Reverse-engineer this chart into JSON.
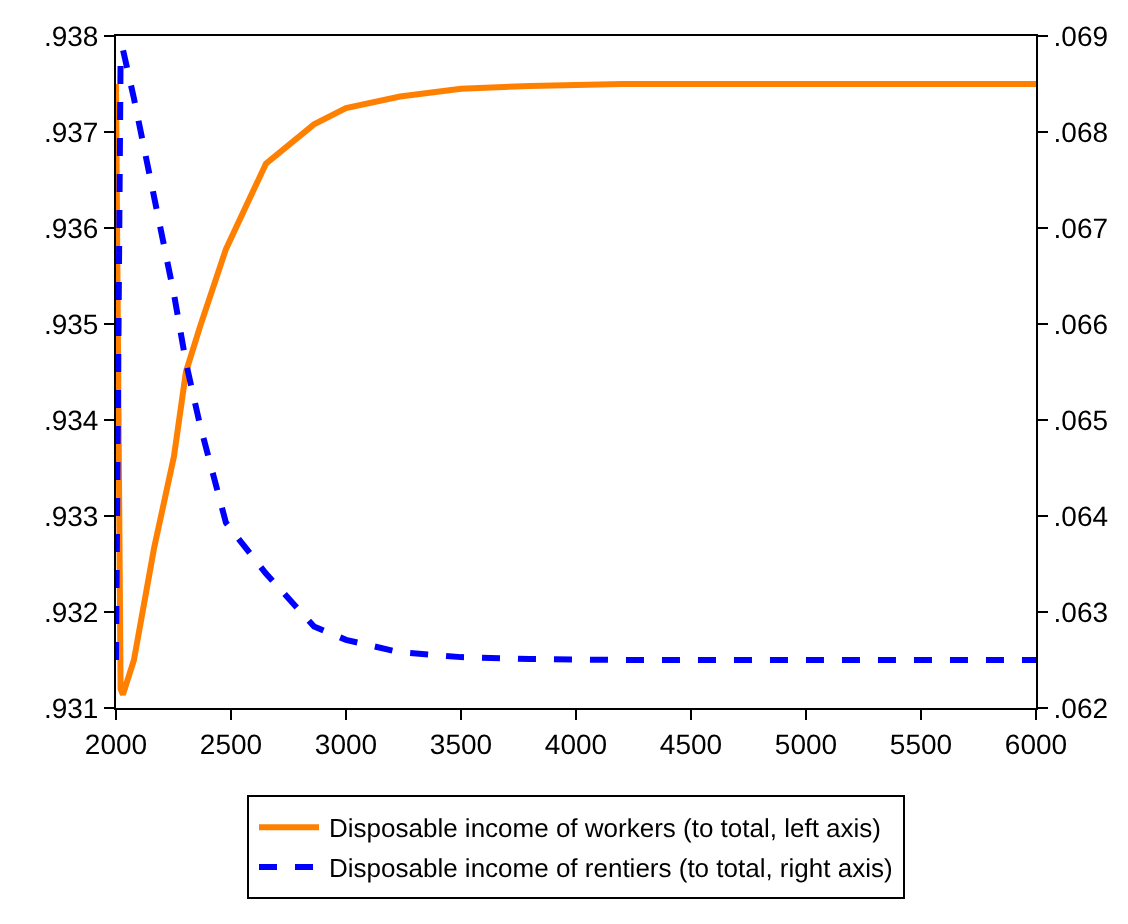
{
  "chart_data": {
    "type": "line",
    "x": [
      2000,
      2020,
      2030,
      2078,
      2165,
      2252,
      2304,
      2365,
      2478,
      2652,
      2861,
      3000,
      3235,
      3500,
      3800,
      4200,
      5000,
      6000
    ],
    "series": [
      {
        "name": "Disposable income of workers (to total, left axis)",
        "color": "#ff8000",
        "line_style": "solid",
        "values": [
          0.9375,
          0.9312,
          0.93114,
          0.9315,
          0.93266,
          0.93362,
          0.9345,
          0.93497,
          0.93578,
          0.93667,
          0.93708,
          0.93725,
          0.93737,
          0.93745,
          0.93748,
          0.9375,
          0.9375,
          0.9375
        ]
      },
      {
        "name": "Disposable income of rentiers (to total, right axis)",
        "color": "#0000ff",
        "line_style": "dashed",
        "axis": "y2",
        "values": [
          0.0625,
          0.0688,
          0.06886,
          0.06835,
          0.06733,
          0.06631,
          0.0656,
          0.06495,
          0.06393,
          0.0634,
          0.06285,
          0.06271,
          0.06258,
          0.06253,
          0.06251,
          0.0625,
          0.0625,
          0.0625
        ]
      }
    ],
    "xlim": [
      2000,
      6000
    ],
    "xticks": [
      2000,
      2500,
      3000,
      3500,
      4000,
      4500,
      5000,
      5500,
      6000
    ],
    "ylim": [
      0.931,
      0.938
    ],
    "yticks": [
      {
        "value": 0.931,
        "label": ".931"
      },
      {
        "value": 0.932,
        "label": ".932"
      },
      {
        "value": 0.933,
        "label": ".933"
      },
      {
        "value": 0.934,
        "label": ".934"
      },
      {
        "value": 0.935,
        "label": ".935"
      },
      {
        "value": 0.936,
        "label": ".936"
      },
      {
        "value": 0.937,
        "label": ".937"
      },
      {
        "value": 0.938,
        "label": ".938"
      }
    ],
    "y2lim": [
      0.062,
      0.069
    ],
    "y2ticks": [
      {
        "value": 0.062,
        "label": ".062"
      },
      {
        "value": 0.063,
        "label": ".063"
      },
      {
        "value": 0.064,
        "label": ".064"
      },
      {
        "value": 0.065,
        "label": ".065"
      },
      {
        "value": 0.066,
        "label": ".066"
      },
      {
        "value": 0.067,
        "label": ".067"
      },
      {
        "value": 0.068,
        "label": ".068"
      },
      {
        "value": 0.069,
        "label": ".069"
      }
    ],
    "grid": false,
    "legend": "bottom",
    "marker": "none"
  }
}
